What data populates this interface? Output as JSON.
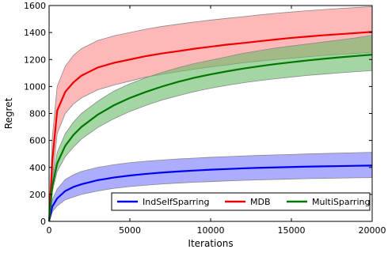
{
  "chart_data": {
    "type": "line",
    "xlabel": "Iterations",
    "ylabel": "Regret",
    "xlim": [
      0,
      20000
    ],
    "ylim": [
      0,
      1600
    ],
    "x_ticks": [
      0,
      5000,
      10000,
      15000,
      20000
    ],
    "y_ticks": [
      0,
      200,
      400,
      600,
      800,
      1000,
      1200,
      1400,
      1600
    ],
    "grid": false,
    "legend_position": "lower-right",
    "x": [
      0,
      200,
      500,
      1000,
      1500,
      2000,
      3000,
      4000,
      5000,
      6000,
      7000,
      8000,
      9000,
      10000,
      11000,
      12000,
      13000,
      14000,
      15000,
      16000,
      17000,
      18000,
      19000,
      20000
    ],
    "series": [
      {
        "name": "IndSelfSparring",
        "color": "#0000ee",
        "band_color": "#7777ff",
        "mean": [
          0,
          110,
          170,
          225,
          255,
          275,
          305,
          325,
          340,
          352,
          362,
          370,
          377,
          383,
          388,
          393,
          397,
          400,
          403,
          406,
          408,
          410,
          412,
          414
        ],
        "upper": [
          0,
          160,
          240,
          310,
          345,
          370,
          400,
          420,
          435,
          446,
          455,
          463,
          469,
          475,
          480,
          485,
          489,
          493,
          496,
          500,
          503,
          506,
          509,
          512
        ],
        "lower": [
          0,
          70,
          115,
          160,
          180,
          200,
          225,
          245,
          258,
          268,
          277,
          284,
          290,
          295,
          300,
          304,
          308,
          311,
          314,
          317,
          319,
          321,
          323,
          325
        ]
      },
      {
        "name": "MDB",
        "color": "#ee0000",
        "band_color": "#ff8888",
        "mean": [
          0,
          450,
          820,
          960,
          1030,
          1080,
          1140,
          1175,
          1200,
          1225,
          1245,
          1262,
          1280,
          1295,
          1310,
          1322,
          1335,
          1348,
          1360,
          1370,
          1380,
          1388,
          1396,
          1405
        ],
        "upper": [
          0,
          620,
          1000,
          1150,
          1230,
          1280,
          1340,
          1375,
          1400,
          1425,
          1445,
          1462,
          1478,
          1492,
          1505,
          1517,
          1530,
          1542,
          1552,
          1562,
          1570,
          1578,
          1585,
          1592
        ],
        "lower": [
          0,
          300,
          650,
          800,
          870,
          915,
          975,
          1010,
          1040,
          1070,
          1090,
          1110,
          1128,
          1145,
          1160,
          1175,
          1188,
          1200,
          1210,
          1220,
          1230,
          1238,
          1245,
          1252
        ]
      },
      {
        "name": "MultiSparring",
        "color": "#007700",
        "band_color": "#66bb66",
        "mean": [
          0,
          260,
          430,
          560,
          640,
          700,
          790,
          860,
          915,
          960,
          1000,
          1035,
          1065,
          1090,
          1112,
          1132,
          1150,
          1166,
          1180,
          1193,
          1205,
          1216,
          1226,
          1236
        ],
        "upper": [
          0,
          300,
          510,
          650,
          735,
          800,
          890,
          965,
          1020,
          1065,
          1105,
          1140,
          1170,
          1195,
          1220,
          1245,
          1265,
          1285,
          1300,
          1315,
          1330,
          1345,
          1360,
          1380
        ],
        "lower": [
          0,
          220,
          370,
          480,
          550,
          610,
          695,
          760,
          815,
          860,
          900,
          932,
          962,
          987,
          1008,
          1027,
          1043,
          1057,
          1070,
          1082,
          1092,
          1101,
          1110,
          1118
        ]
      }
    ]
  }
}
